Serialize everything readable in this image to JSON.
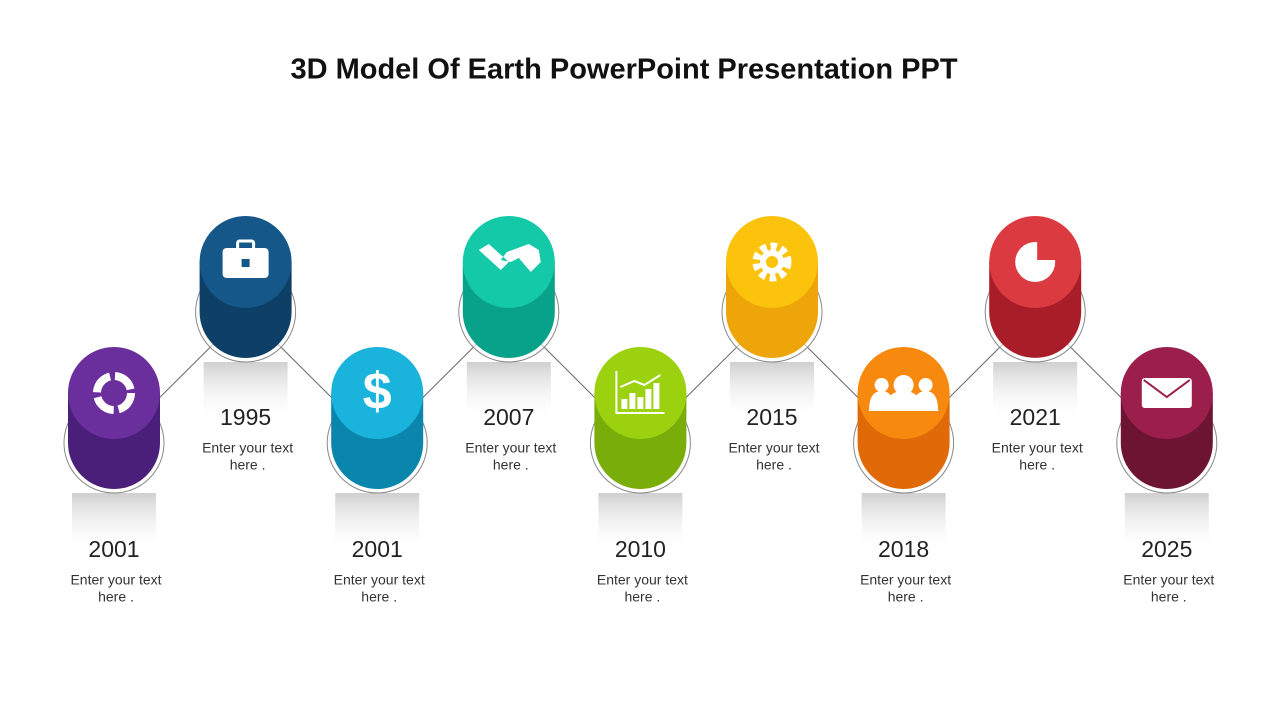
{
  "title": "3D Model Of Earth PowerPoint Presentation PPT",
  "items": [
    {
      "year": "2001",
      "text": [
        "Enter your text",
        "here  ."
      ]
    },
    {
      "year": "1995",
      "text": [
        "Enter your text",
        "here  ."
      ]
    },
    {
      "year": "2001",
      "text": [
        "Enter your text",
        "here  ."
      ]
    },
    {
      "year": "2007",
      "text": [
        "Enter your text",
        "here  ."
      ]
    },
    {
      "year": "2010",
      "text": [
        "Enter your text",
        "here  ."
      ]
    },
    {
      "year": "2015",
      "text": [
        "Enter your text",
        "here  ."
      ]
    },
    {
      "year": "2018",
      "text": [
        "Enter your text",
        "here  ."
      ]
    },
    {
      "year": "2021",
      "text": [
        "Enter your text",
        "here  ."
      ]
    },
    {
      "year": "2025",
      "text": [
        "Enter your text",
        "here  ."
      ]
    }
  ]
}
